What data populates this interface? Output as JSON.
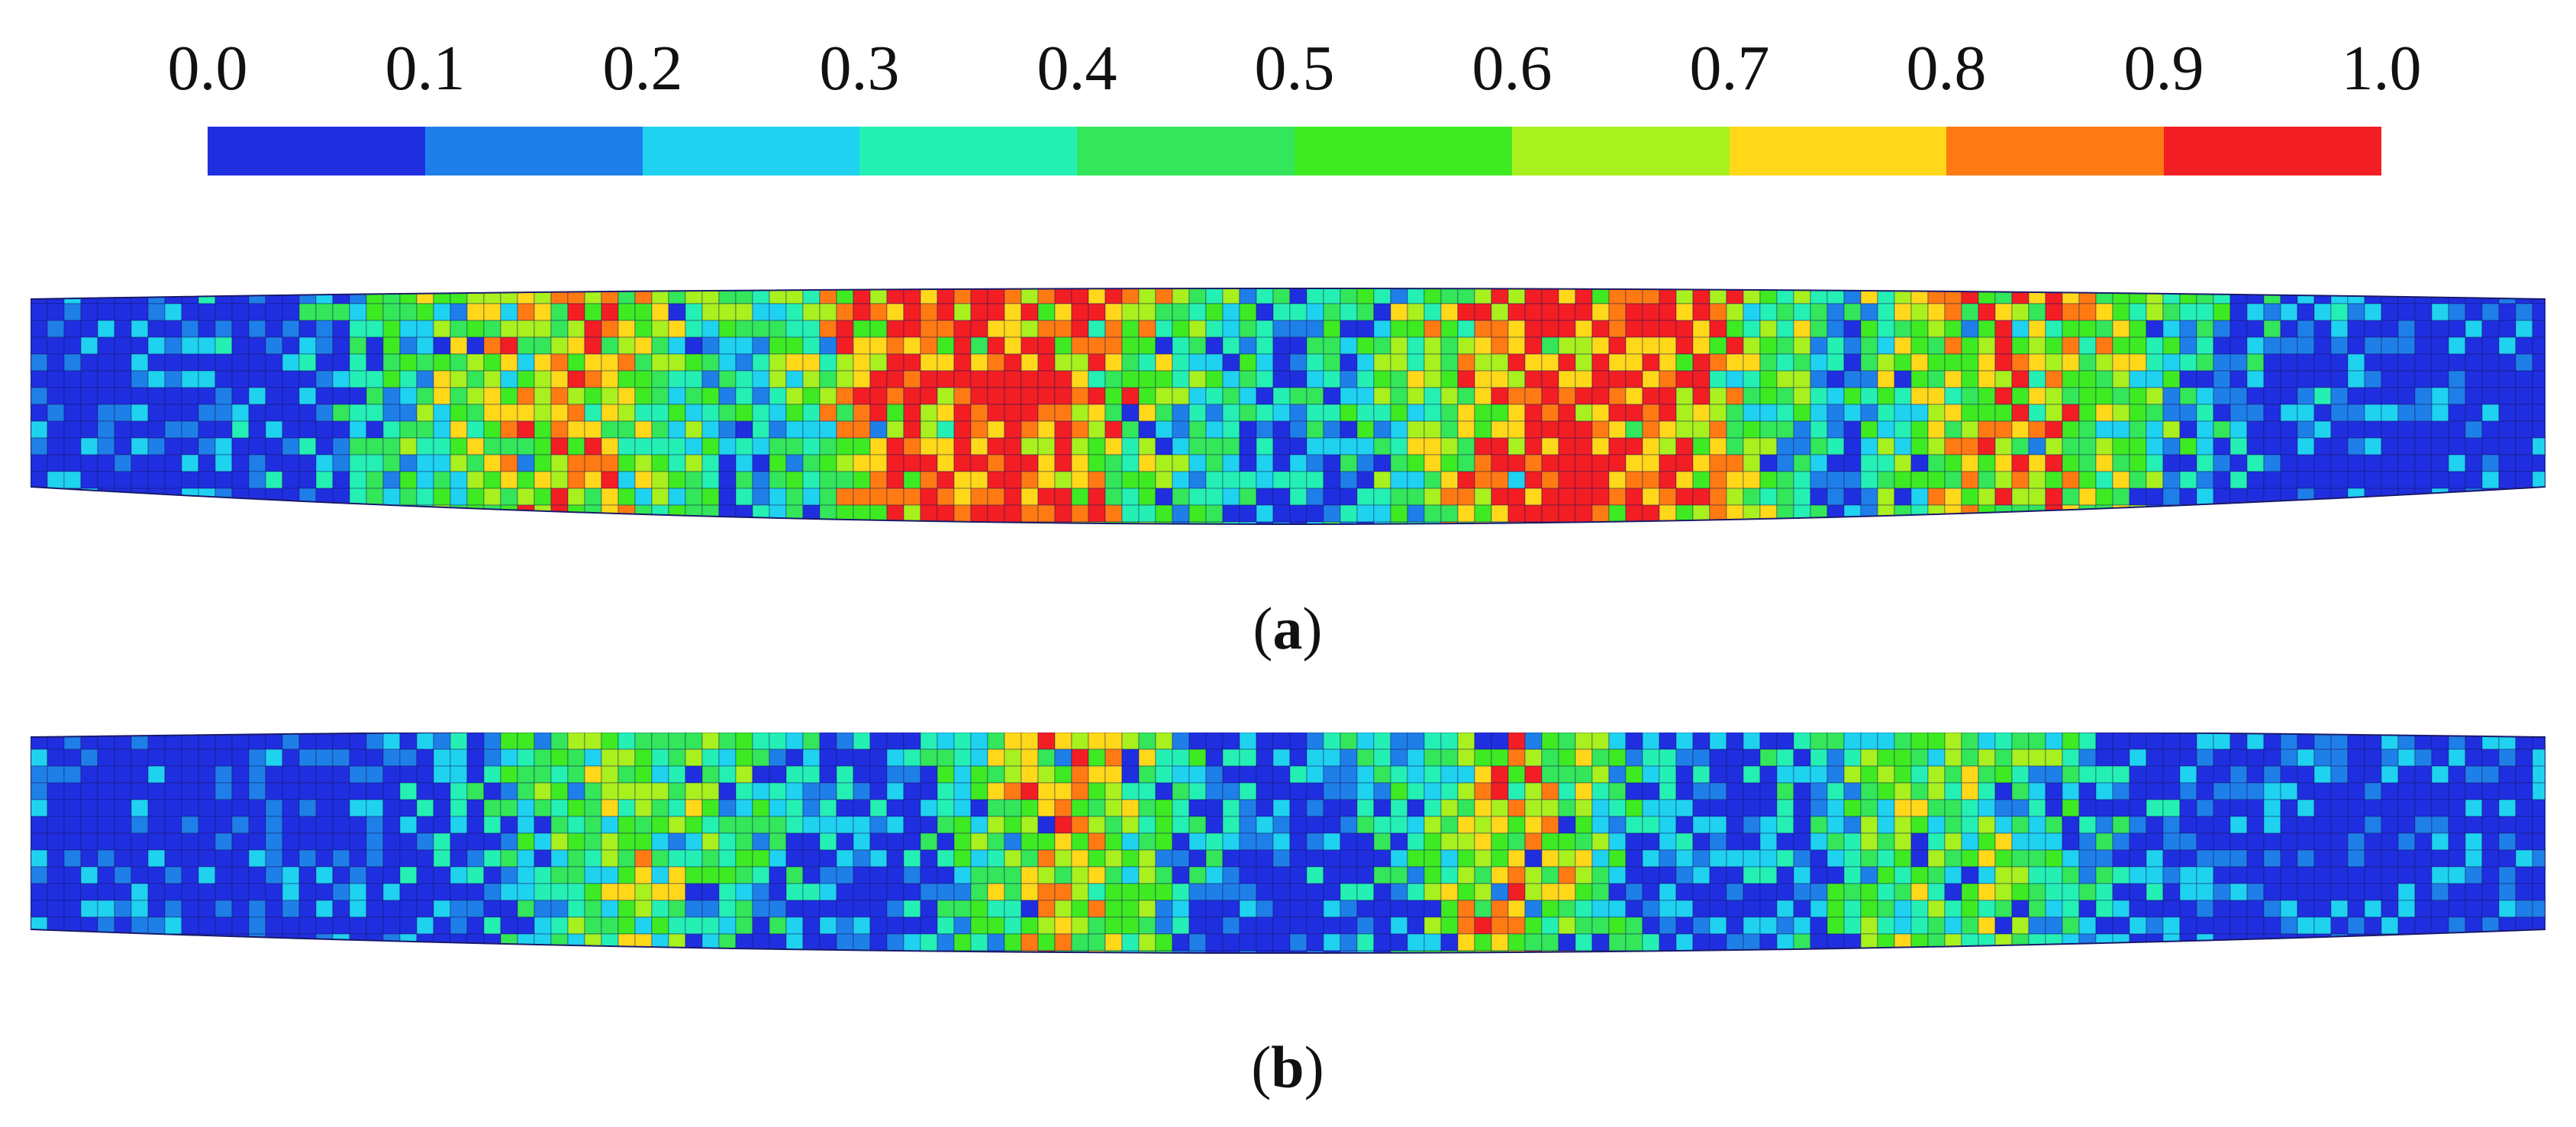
{
  "colorbar": {
    "ticks": [
      "0.0",
      "0.1",
      "0.2",
      "0.3",
      "0.4",
      "0.5",
      "0.6",
      "0.7",
      "0.8",
      "0.9",
      "1.0"
    ],
    "colors": [
      "#1f2fe0",
      "#1f7fe8",
      "#1fd2f0",
      "#25f0b4",
      "#33e65a",
      "#3eea22",
      "#a8f01e",
      "#ffd81a",
      "#ff7a12",
      "#f21e24"
    ]
  },
  "panels": [
    {
      "label": "a",
      "zones": [
        {
          "center": 0.21,
          "spread": 0.075,
          "level": 0.75
        },
        {
          "center": 0.38,
          "spread": 0.09,
          "level": 1.0
        },
        {
          "center": 0.62,
          "spread": 0.09,
          "level": 1.0
        },
        {
          "center": 0.79,
          "spread": 0.075,
          "level": 0.75
        }
      ]
    },
    {
      "label": "b",
      "zones": [
        {
          "center": 0.24,
          "spread": 0.06,
          "level": 0.55
        },
        {
          "center": 0.41,
          "spread": 0.05,
          "level": 0.7
        },
        {
          "center": 0.59,
          "spread": 0.05,
          "level": 0.7
        },
        {
          "center": 0.76,
          "spread": 0.06,
          "level": 0.55
        }
      ]
    }
  ]
}
